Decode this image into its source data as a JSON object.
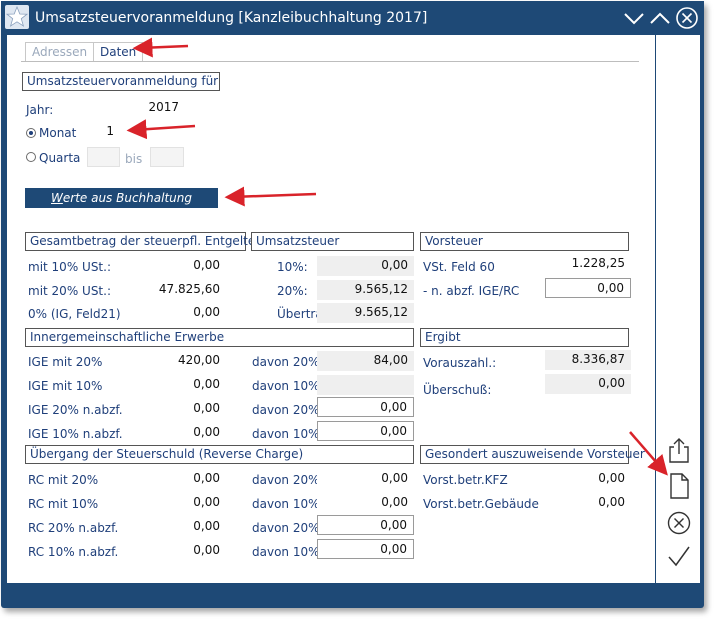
{
  "window": {
    "title": "Umsatzsteuervoranmeldung [Kanzleibuchhaltung 2017]",
    "accent": "#1e4976",
    "controls": [
      "chevron-down-icon",
      "chevron-up-icon",
      "close-circle-icon"
    ]
  },
  "tabs": [
    {
      "label": "Adressen",
      "active": false
    },
    {
      "label": "Daten",
      "active": true
    }
  ],
  "selection": {
    "group_title": "Umsatzsteuervoranmeldung für",
    "jahr_label": "Jahr:",
    "jahr_value": "2017",
    "monat_label": "Monat",
    "monat_value": "1",
    "quarta_label": "Quarta",
    "quarta_from": "",
    "bis_label": "bis",
    "quarta_to": ""
  },
  "werte_button": {
    "label_underlined": "W",
    "label_rest": "erte aus Buchhaltung"
  },
  "entgelte": {
    "title": "Gesamtbetrag der steuerpfl. Entgelte",
    "rows": [
      {
        "label": "mit 10% USt.:",
        "value": "0,00"
      },
      {
        "label": "mit 20% USt.:",
        "value": "47.825,60"
      },
      {
        "label": "0% (IG, Feld21)",
        "value": "0,00"
      }
    ]
  },
  "umsatzsteuer": {
    "title": "Umsatzsteuer",
    "rows": [
      {
        "label": "10%:",
        "value": "0,00"
      },
      {
        "label": "20%:",
        "value": "9.565,12"
      },
      {
        "label": "Übertrag:",
        "value": "9.565,12"
      }
    ]
  },
  "vorsteuer": {
    "title": "Vorsteuer",
    "rows": [
      {
        "label": "VSt. Feld 60",
        "value": "1.228,25"
      },
      {
        "label": "- n. abzf. IGE/RC",
        "value": "0,00"
      }
    ]
  },
  "ige": {
    "title": "Innergemeinschaftliche Erwerbe",
    "rows": [
      {
        "label": "IGE mit 20%",
        "value": "420,00",
        "davon_label": "davon 20%",
        "davon_value": "84,00"
      },
      {
        "label": "IGE mit 10%",
        "value": "0,00",
        "davon_label": "davon 10%",
        "davon_value": ""
      },
      {
        "label": "IGE 20% n.abzf.",
        "value": "0,00",
        "davon_label": "davon 20%",
        "davon_value": "0,00"
      },
      {
        "label": "IGE 10% n.abzf.",
        "value": "0,00",
        "davon_label": "davon 10%",
        "davon_value": "0,00"
      }
    ]
  },
  "ergibt": {
    "title": "Ergibt",
    "rows": [
      {
        "label": "Vorauszahl.:",
        "value": "8.336,87"
      },
      {
        "label": "Überschuß:",
        "value": "0,00"
      }
    ]
  },
  "rc": {
    "title": "Übergang der Steuerschuld (Reverse Charge)",
    "rows": [
      {
        "label": "RC mit 20%",
        "value": "0,00",
        "davon_label": "davon 20%",
        "davon_value": "0,00"
      },
      {
        "label": "RC mit 10%",
        "value": "0,00",
        "davon_label": "davon 10%",
        "davon_value": "0,00"
      },
      {
        "label": "RC 20% n.abzf.",
        "value": "0,00",
        "davon_label": "davon 20%",
        "davon_value": "0,00"
      },
      {
        "label": "RC 10% n.abzf.",
        "value": "0,00",
        "davon_label": "davon 10%",
        "davon_value": "0,00"
      }
    ]
  },
  "gesondert": {
    "title": "Gesondert auszuweisende Vorsteuer",
    "rows": [
      {
        "label": "Vorst.betr.KFZ",
        "value": "0,00"
      },
      {
        "label": "Vorst.betr.Gebäude",
        "value": "0,00"
      }
    ]
  },
  "sidebar": [
    "export-icon",
    "document-icon",
    "cancel-icon",
    "confirm-check-icon"
  ],
  "annotation_color": "#d9232a"
}
